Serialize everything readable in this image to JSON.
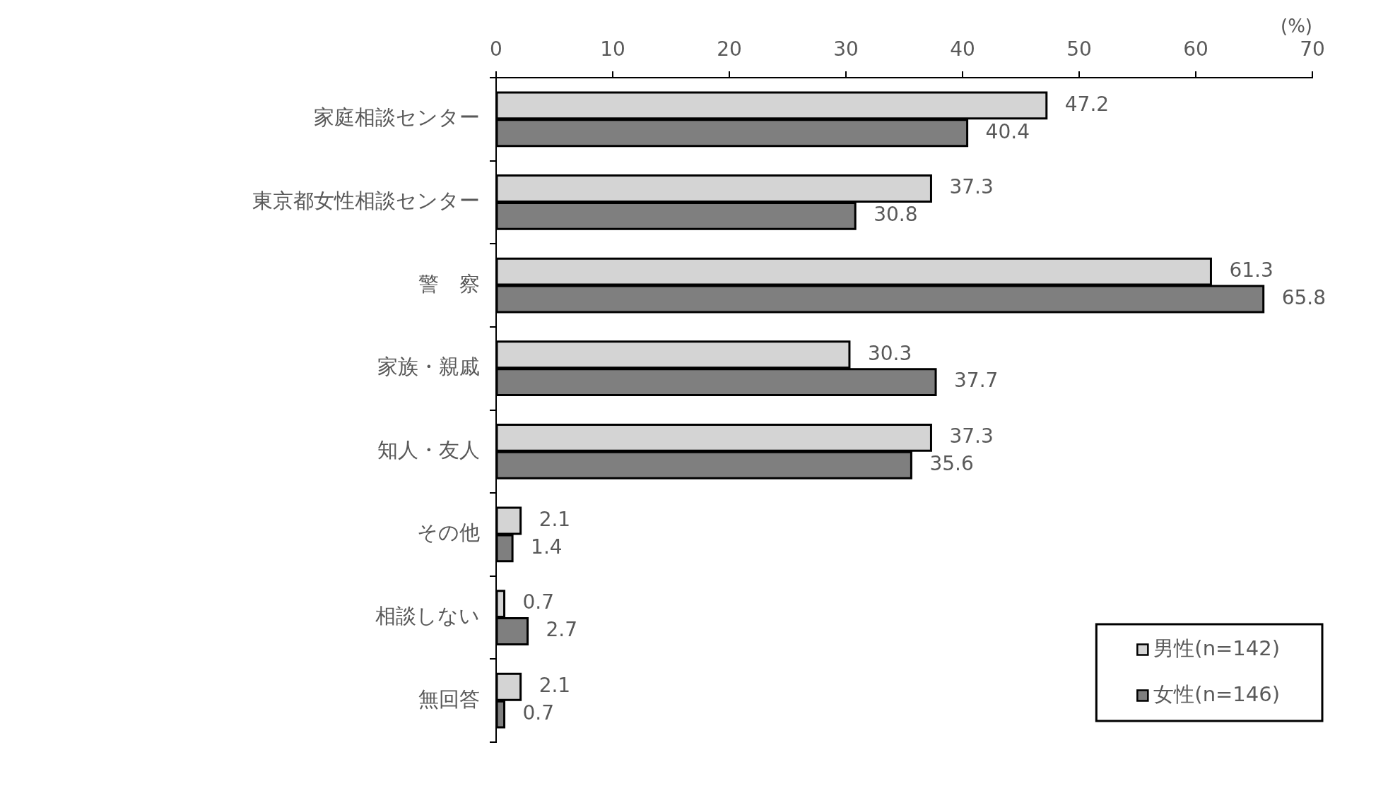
{
  "chart_data": {
    "type": "bar",
    "orientation": "horizontal",
    "xlabel": "(%)",
    "categories": [
      "家庭相談センター",
      "東京都女性相談センター",
      "警　察",
      "家族・親戚",
      "知人・友人",
      "その他",
      "相談しない",
      "無回答"
    ],
    "series": [
      {
        "name": "男性(n=142)",
        "color": "#d4d4d4",
        "values": [
          47.2,
          37.3,
          61.3,
          30.3,
          37.3,
          2.1,
          0.7,
          2.1
        ]
      },
      {
        "name": "女性(n=146)",
        "color": "#7f7f7f",
        "values": [
          40.4,
          30.8,
          65.8,
          37.7,
          35.6,
          1.4,
          2.7,
          0.7
        ]
      }
    ],
    "xlim": [
      0,
      70
    ],
    "xticks": [
      0,
      10,
      20,
      30,
      40,
      50,
      60,
      70
    ],
    "data_labels": true,
    "grid": false,
    "legend": "bottom right"
  }
}
